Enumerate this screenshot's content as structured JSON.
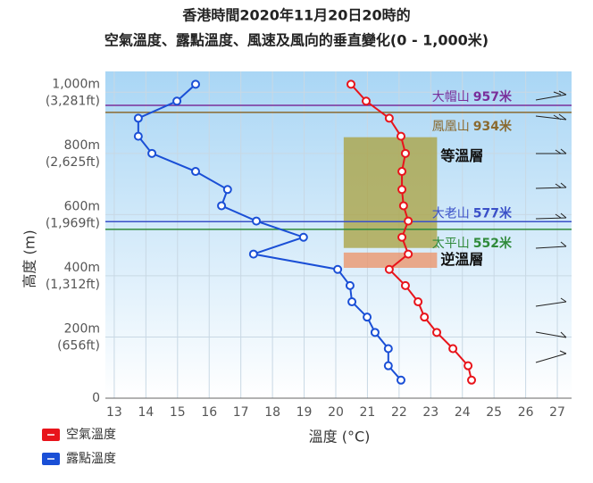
{
  "chart_data": {
    "type": "profile",
    "title": "香港時間2020年11月20日20時的",
    "subtitle": "空氣溫度、露點溫度、風速及風向的垂直變化(0 - 1,000米)",
    "x_label": "溫度 (°C)",
    "y_label": "高度 (m)",
    "xlim": [
      12.72,
      27.45
    ],
    "xticks": [
      13,
      14,
      15,
      16,
      17,
      18,
      19,
      20,
      21,
      22,
      23,
      24,
      25,
      26,
      27
    ],
    "ylim": [
      0,
      1068
    ],
    "yticks": [
      {
        "value": 0,
        "label": "0"
      },
      {
        "value": 200,
        "label": "200m",
        "feet": "(656ft)"
      },
      {
        "value": 400,
        "label": "400m",
        "feet": "(1,312ft)"
      },
      {
        "value": 600,
        "label": "600m",
        "feet": "(1,969ft)"
      },
      {
        "value": 800,
        "label": "800m",
        "feet": "(2,625ft)"
      },
      {
        "value": 1000,
        "label": "1,000m",
        "feet": "(3,281ft)"
      }
    ],
    "grid": true,
    "heights": [
      1026,
      971,
      915,
      856,
      800,
      741,
      682,
      629,
      579,
      526,
      471,
      421,
      368,
      315,
      265,
      215,
      162,
      106,
      59
    ],
    "series": [
      {
        "name": "空氣溫度",
        "color": "#e8141b",
        "values": [
          20.48,
          20.96,
          21.69,
          22.06,
          22.2,
          22.09,
          22.09,
          22.14,
          22.29,
          22.09,
          22.29,
          21.69,
          22.2,
          22.6,
          22.8,
          23.19,
          23.7,
          24.18,
          24.29
        ]
      },
      {
        "name": "露點溫度",
        "color": "#1a4fd6",
        "values": [
          15.57,
          14.98,
          13.76,
          13.76,
          14.19,
          15.57,
          16.58,
          16.39,
          17.49,
          18.98,
          17.4,
          20.06,
          20.45,
          20.51,
          20.99,
          21.24,
          21.66,
          21.66,
          22.06
        ]
      }
    ],
    "mountains": [
      {
        "name": "大帽山",
        "height": 957,
        "label": "957米",
        "color": "#7a2f9a"
      },
      {
        "name": "鳳凰山",
        "height": 934,
        "label": "934米",
        "color": "#8a6a30"
      },
      {
        "name": "大老山",
        "height": 577,
        "label": "577米",
        "color": "#3a50c8"
      },
      {
        "name": "太平山",
        "height": 552,
        "label": "552米",
        "color": "#2f8a3a"
      }
    ],
    "regions": [
      {
        "label": "等溫層",
        "xrange": [
          20.25,
          23.2
        ],
        "yrange": [
          491,
          853
        ],
        "color": "rgba(170,160,60,0.75)"
      },
      {
        "label": "逆溫層",
        "xrange": [
          20.25,
          23.2
        ],
        "yrange": [
          426,
          476
        ],
        "color": "rgba(235,150,110,0.8)"
      }
    ]
  }
}
